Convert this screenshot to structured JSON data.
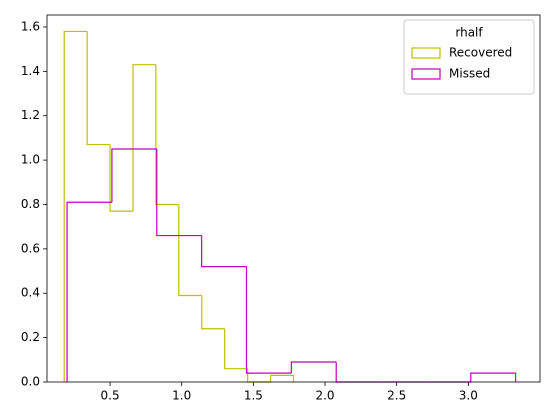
{
  "chart_data": {
    "type": "histogram",
    "series": [
      {
        "name": "Recovered",
        "color": "#bfbf00",
        "bins": [
          0.18,
          0.34,
          0.5,
          0.66,
          0.82,
          0.98,
          1.14,
          1.3,
          1.46,
          1.62,
          1.78
        ],
        "values": [
          1.58,
          1.07,
          0.77,
          1.43,
          0.8,
          0.39,
          0.24,
          0.06,
          0,
          0.03
        ]
      },
      {
        "name": "Missed",
        "color": "#bf00bf",
        "bins": [
          0.2,
          0.513,
          0.826,
          1.139,
          1.452,
          1.765,
          2.078,
          2.391,
          2.704,
          3.017,
          3.33
        ],
        "values": [
          0.81,
          1.05,
          0.66,
          0.52,
          0.04,
          0.09,
          0,
          0,
          0,
          0.04
        ]
      }
    ],
    "legend_title": "rhalf",
    "legend": "upper right",
    "xlim": [
      0.06,
      3.5
    ],
    "xticks": [
      {
        "value": 0.5,
        "label": "0.5"
      },
      {
        "value": 1,
        "label": "1.0"
      },
      {
        "value": 1.5,
        "label": "1.5"
      },
      {
        "value": 2,
        "label": "2.0"
      },
      {
        "value": 2.5,
        "label": "2.5"
      },
      {
        "value": 3,
        "label": "3.0"
      }
    ],
    "ylim": [
      0,
      1.654
    ],
    "yticks": [
      {
        "value": 0,
        "label": "0.0"
      },
      {
        "value": 0.2,
        "label": "0.2"
      },
      {
        "value": 0.4,
        "label": "0.4"
      },
      {
        "value": 0.6,
        "label": "0.6"
      },
      {
        "value": 0.8,
        "label": "0.8"
      },
      {
        "value": 1,
        "label": "1.0"
      },
      {
        "value": 1.2,
        "label": "1.2"
      },
      {
        "value": 1.4,
        "label": "1.4"
      },
      {
        "value": 1.6,
        "label": "1.6"
      }
    ]
  }
}
